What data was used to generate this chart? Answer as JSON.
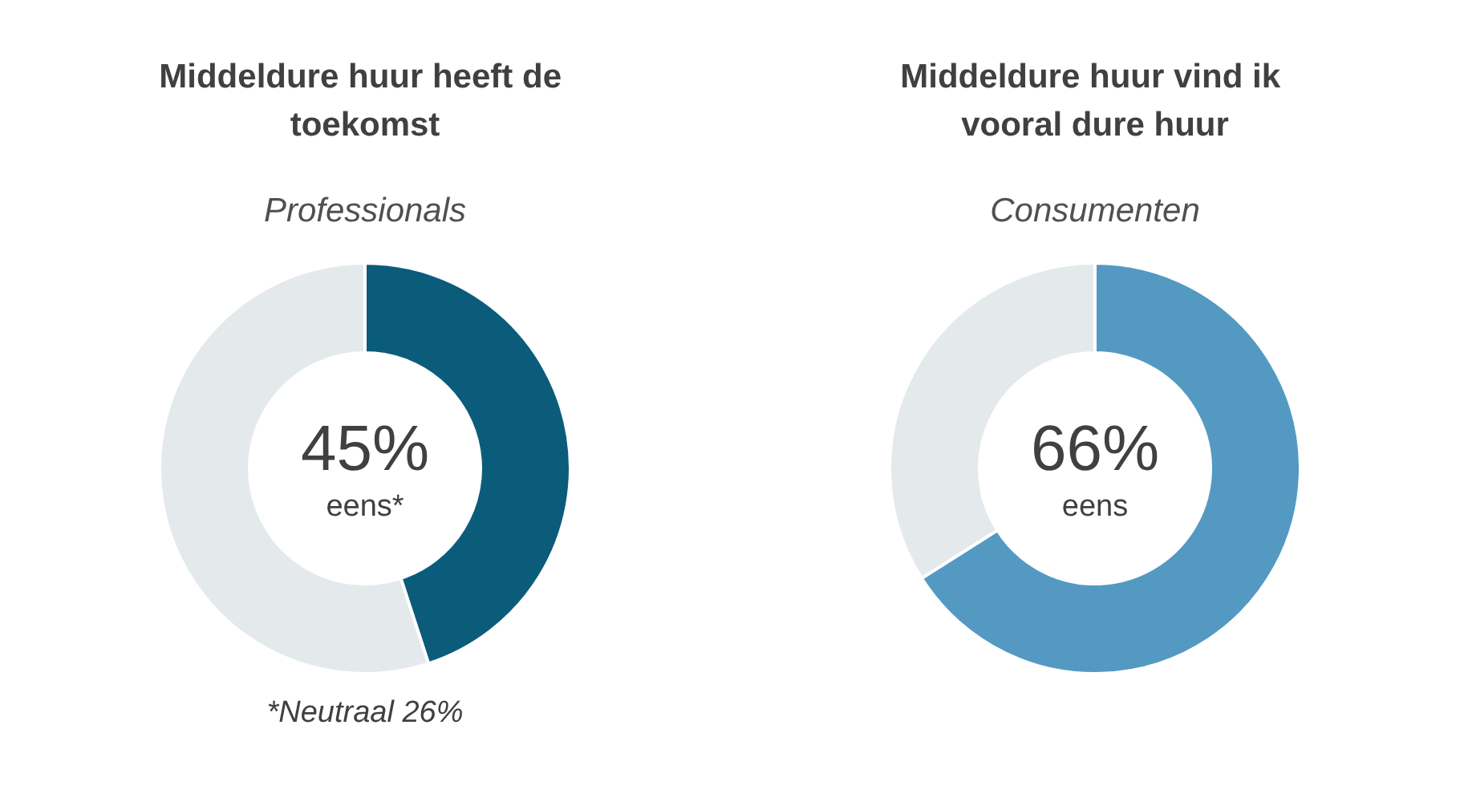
{
  "chart_data": [
    {
      "type": "donut",
      "title": "Middeldure huur heeft de toekomst",
      "subtitle": "Professionals",
      "categories": [
        "eens*",
        null
      ],
      "values": [
        45,
        55
      ],
      "value_labels": [
        "45%",
        null
      ],
      "colors": [
        "#0b5c7a",
        "#e4e9ec"
      ],
      "annotations": [
        "*Neutraal 26%"
      ]
    },
    {
      "type": "donut",
      "title": "Middeldure huur vind ik vooral dure huur",
      "subtitle": "Consumenten",
      "categories": [
        "eens",
        null
      ],
      "values": [
        66,
        34
      ],
      "value_labels": [
        "66%",
        null
      ],
      "colors": [
        "#5499c2",
        "#e4e9ec"
      ]
    }
  ]
}
